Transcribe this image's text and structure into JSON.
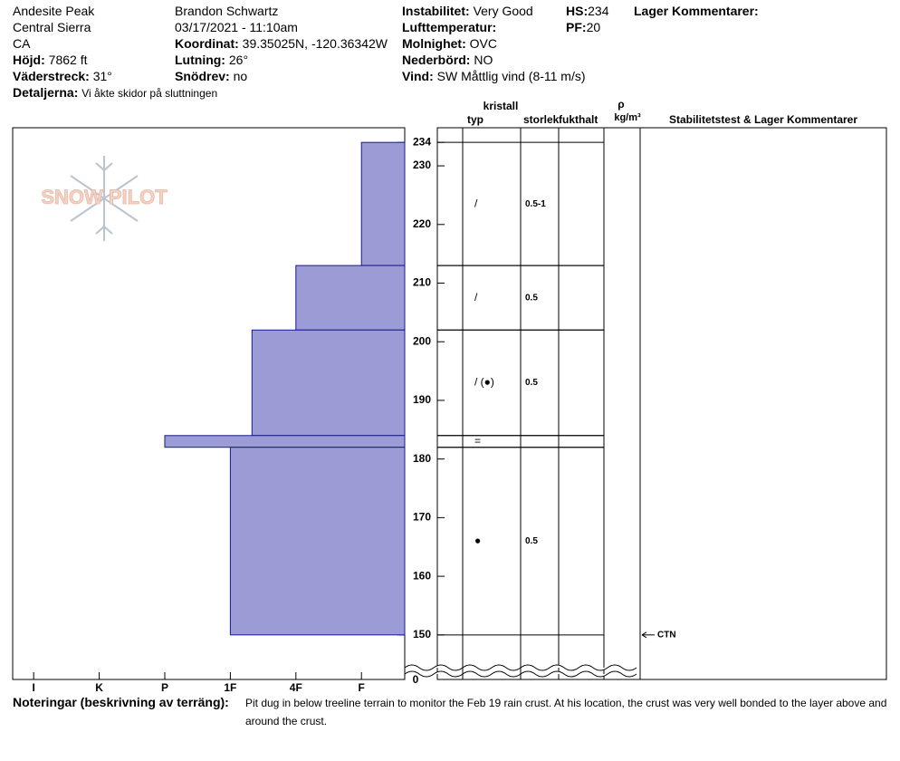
{
  "header": {
    "location": "Andesite Peak",
    "range": "Central Sierra",
    "state": "CA",
    "elevation": {
      "label": "Höjd:",
      "value": "7862 ft"
    },
    "aspect": {
      "label": "Väderstreck:",
      "value": "31°"
    },
    "details": {
      "label": "Detaljerna:",
      "value": "Vi åkte skidor på sluttningen"
    },
    "observer": "Brandon Schwartz",
    "datetime": "03/17/2021 - 11:10am",
    "coordinates": {
      "label": "Koordinat:",
      "value": "39.35025N, -120.36342W"
    },
    "slope": {
      "label": "Lutning:",
      "value": "26°"
    },
    "wind_loading": {
      "label": "Snödrev:",
      "value": "no"
    },
    "instability": {
      "label": "Instabilitet:",
      "value": "Very Good"
    },
    "air_temp": {
      "label": "Lufttemperatur:"
    },
    "sky": {
      "label": "Molnighet:",
      "value": "OVC"
    },
    "precip": {
      "label": "Nederbörd:",
      "value": "NO"
    },
    "wind": {
      "label": "Vind:",
      "value": "SW  Måttlig vind (8-11 m/s)"
    },
    "hs": {
      "label": "HS:",
      "value": "234"
    },
    "pf": {
      "label": "PF:",
      "value": "20"
    },
    "layer_comments": "Lager Kommentarer:"
  },
  "chart_data": {
    "type": "snow-profile",
    "logo": "SNOW PILOT",
    "ylim": [
      142.4,
      236.5
    ],
    "yticks": [
      150,
      160,
      170,
      180,
      190,
      200,
      210,
      220,
      230,
      234
    ],
    "break_label": "0",
    "xlim": [
      6.32,
      0.34
    ],
    "xticks": [
      {
        "value": 6,
        "label": "I"
      },
      {
        "value": 5,
        "label": "K"
      },
      {
        "value": 4,
        "label": "P"
      },
      {
        "value": 3,
        "label": "1F"
      },
      {
        "value": 2,
        "label": "4F"
      },
      {
        "value": 1,
        "label": "F"
      }
    ],
    "bar_color": "#9b9bd6",
    "columns": {
      "crystal": "kristall",
      "type": "typ",
      "size": "storlek",
      "moisture": "fukthalt",
      "density": "ρ",
      "density_unit": "kg/m³",
      "comments": "Stabilitetstest & Lager Kommentarer"
    },
    "layers": [
      {
        "top": 234,
        "bottom": 213,
        "hardness": 1,
        "grain_type": "/",
        "grain_size": "0.5-1"
      },
      {
        "top": 213,
        "bottom": 202,
        "hardness": 2,
        "grain_type": "/",
        "grain_size": "0.5"
      },
      {
        "top": 202,
        "bottom": 184,
        "hardness": 2.67,
        "grain_type": "/ (●)",
        "grain_size": "0.5"
      },
      {
        "top": 184,
        "bottom": 182,
        "hardness": 4,
        "grain_type": "="
      },
      {
        "top": 182,
        "bottom": 150,
        "hardness": 3,
        "grain_type": "●",
        "grain_size": "0.5"
      }
    ],
    "tests": [
      {
        "height": 150,
        "result": "CTN"
      }
    ]
  },
  "notes": {
    "label": "Noteringar (beskrivning av terräng):",
    "text": "Pit dug in below treeline terrain to monitor the Feb 19 rain crust. At his location, the crust was very well bonded to the layer above and around the crust."
  }
}
